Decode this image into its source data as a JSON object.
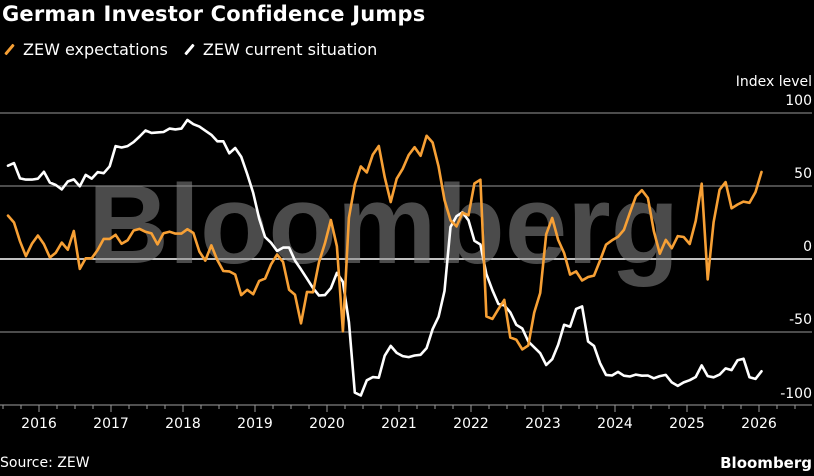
{
  "header": {
    "title": "German Investor Confidence Jumps"
  },
  "footer": {
    "source": "Source: ZEW",
    "brand": "Bloomberg"
  },
  "watermark": "Bloomberg",
  "colors": {
    "expectations": "#f7a035",
    "current": "#ffffff",
    "grid": "#7a7a7a",
    "zero_line": "#ffffff",
    "background": "#000000"
  },
  "chart_data": {
    "type": "line",
    "title": "German Investor Confidence Jumps",
    "ylabel": "Index level",
    "xlabel": "",
    "ylim": [
      -100,
      100
    ],
    "yticks": [
      100,
      50,
      0,
      -50,
      -100
    ],
    "xticks": [
      "2016",
      "2017",
      "2018",
      "2019",
      "2020",
      "2021",
      "2022",
      "2023",
      "2024",
      "2025",
      "2026"
    ],
    "grid": true,
    "legend_position": "top-left",
    "x_start": "2015-07",
    "x_frequency": "monthly",
    "series": [
      {
        "name": "ZEW expectations",
        "color": "#f7a035",
        "values": [
          29.7,
          25.0,
          12.1,
          1.9,
          10.4,
          16.1,
          10.2,
          1.0,
          4.3,
          11.2,
          6.4,
          19.2,
          -6.8,
          0.5,
          0.5,
          6.2,
          13.8,
          13.8,
          16.6,
          10.4,
          12.8,
          19.5,
          20.6,
          18.6,
          17.5,
          10.0,
          17.6,
          18.7,
          17.4,
          17.4,
          20.4,
          17.8,
          5.1,
          -1.1,
          9.4,
          -0.7,
          -8.2,
          -8.5,
          -10.6,
          -24.7,
          -21.1,
          -24.1,
          -15.0,
          -13.4,
          -3.6,
          3.1,
          -2.1,
          -21.1,
          -24.5,
          -44.1,
          -22.5,
          -22.8,
          -2.1,
          10.7,
          26.7,
          8.7,
          -49.5,
          28.2,
          51.0,
          63.4,
          59.3,
          71.5,
          77.4,
          56.1,
          39.0,
          55.0,
          61.8,
          71.2,
          76.6,
          70.7,
          84.4,
          79.8,
          63.3,
          40.4,
          26.5,
          22.3,
          31.7,
          29.9,
          51.7,
          54.3,
          -39.3,
          -41.0,
          -34.3,
          -28.0,
          -53.8,
          -55.3,
          -61.9,
          -59.2,
          -36.7,
          -23.3,
          16.9,
          28.1,
          13.0,
          4.1,
          -10.7,
          -8.5,
          -14.7,
          -12.3,
          -11.4,
          -1.1,
          9.8,
          12.8,
          15.2,
          19.9,
          31.7,
          42.9,
          47.1,
          41.8,
          19.2,
          3.6,
          13.1,
          7.4,
          15.7,
          15.1,
          10.3,
          26.0,
          51.6,
          -14.0,
          25.2,
          47.5,
          52.7,
          34.7,
          37.3,
          39.3,
          38.5,
          45.8,
          59.6
        ]
      },
      {
        "name": "ZEW current situation",
        "color": "#ffffff",
        "values": [
          63.9,
          65.7,
          55.2,
          54.4,
          54.4,
          55.0,
          59.7,
          52.3,
          50.7,
          47.7,
          53.1,
          54.5,
          49.8,
          57.6,
          55.1,
          59.5,
          58.8,
          63.5,
          77.3,
          76.4,
          77.3,
          80.1,
          83.9,
          88.0,
          86.4,
          86.7,
          87.0,
          89.3,
          88.8,
          89.3,
          95.2,
          92.3,
          90.7,
          87.9,
          85.1,
          80.6,
          80.6,
          72.4,
          76.0,
          70.1,
          58.2,
          45.3,
          27.6,
          15.0,
          11.1,
          5.5,
          7.8,
          7.8,
          -1.1,
          -7.1,
          -13.5,
          -19.9,
          -25.0,
          -24.7,
          -19.9,
          -9.5,
          -15.7,
          -43.1,
          -91.5,
          -93.5,
          -83.1,
          -80.9,
          -81.3,
          -66.2,
          -59.5,
          -64.3,
          -66.5,
          -67.2,
          -66.1,
          -65.6,
          -61.0,
          -48.1,
          -39.5,
          -21.9,
          21.9,
          29.3,
          31.9,
          26.5,
          12.5,
          9.9,
          -10.4,
          -21.4,
          -30.8,
          -31.8,
          -36.5,
          -45.1,
          -47.6,
          -56.5,
          -60.5,
          -64.5,
          -72.6,
          -68.6,
          -58.6,
          -45.1,
          -46.4,
          -34.2,
          -32.5,
          -56.5,
          -59.5,
          -71.3,
          -79.4,
          -79.8,
          -77.3,
          -79.9,
          -80.5,
          -79.2,
          -79.9,
          -79.8,
          -81.7,
          -80.2,
          -79.4,
          -84.5,
          -86.9,
          -84.5,
          -83.0,
          -80.8,
          -72.9,
          -80.2,
          -81.0,
          -79.2,
          -74.9,
          -76.1,
          -69.3,
          -68.3,
          -81.0,
          -82.1,
          -76.9
        ]
      }
    ]
  }
}
